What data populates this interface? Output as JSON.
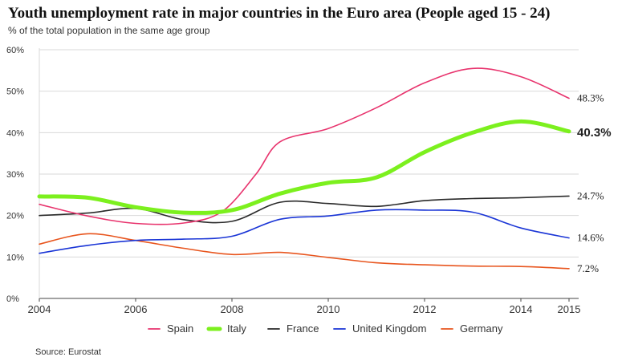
{
  "chart_data": {
    "type": "line",
    "title": "Youth unemployment rate in major countries in the Euro area  (People aged 15 - 24)",
    "subtitle": "% of the total population in the same age group",
    "source": "Source: Eurostat",
    "xlim": [
      2004,
      2015
    ],
    "ylim": [
      0,
      60
    ],
    "x_ticks": [
      "2004",
      "2006",
      "2008",
      "2010",
      "2012",
      "2014",
      "2015"
    ],
    "y_ticks": [
      "0%",
      "10%",
      "20%",
      "30%",
      "40%",
      "50%",
      "60%"
    ],
    "grid": true,
    "legend_position": "bottom",
    "series": [
      {
        "name": "Spain",
        "color": "#e8336d",
        "x": [
          2004,
          2005,
          2006,
          2007,
          2007.8,
          2008.5,
          2009,
          2010,
          2011,
          2012,
          2013,
          2014,
          2015
        ],
        "values": [
          22.7,
          19.9,
          18.1,
          18.2,
          21.0,
          30.0,
          37.8,
          41.0,
          46.0,
          52.0,
          55.5,
          53.5,
          48.3
        ],
        "end_label": "48.3%",
        "bold": false
      },
      {
        "name": "Italy",
        "color": "#7cf01e",
        "x": [
          2004,
          2005,
          2006,
          2007,
          2008,
          2009,
          2010,
          2011,
          2012,
          2013,
          2014,
          2015
        ],
        "values": [
          24.6,
          24.3,
          22.0,
          20.7,
          21.3,
          25.3,
          27.9,
          29.2,
          35.3,
          40.0,
          42.7,
          40.3
        ],
        "end_label": "40.3%",
        "bold": true
      },
      {
        "name": "France",
        "color": "#2a2a2a",
        "x": [
          2004,
          2005,
          2006,
          2007,
          2008,
          2009,
          2010,
          2011,
          2012,
          2013,
          2014,
          2015
        ],
        "values": [
          20.0,
          20.6,
          21.7,
          19.0,
          18.6,
          23.2,
          22.9,
          22.2,
          23.6,
          24.1,
          24.3,
          24.7
        ],
        "end_label": "24.7%",
        "bold": false
      },
      {
        "name": "United Kingdom",
        "color": "#1a35d6",
        "x": [
          2004,
          2005,
          2006,
          2007,
          2008,
          2009,
          2010,
          2011,
          2012,
          2013,
          2014,
          2015
        ],
        "values": [
          10.9,
          12.8,
          14.0,
          14.3,
          15.0,
          19.1,
          19.9,
          21.3,
          21.3,
          20.8,
          17.0,
          14.6
        ],
        "end_label": "14.6%",
        "bold": false
      },
      {
        "name": "Germany",
        "color": "#e8551e",
        "x": [
          2004,
          2005,
          2006,
          2007,
          2008,
          2009,
          2010,
          2011,
          2012,
          2013,
          2014,
          2015
        ],
        "values": [
          13.1,
          15.6,
          14.0,
          12.1,
          10.6,
          11.1,
          9.9,
          8.6,
          8.1,
          7.8,
          7.7,
          7.2
        ],
        "end_label": "7.2%",
        "bold": false
      }
    ]
  }
}
